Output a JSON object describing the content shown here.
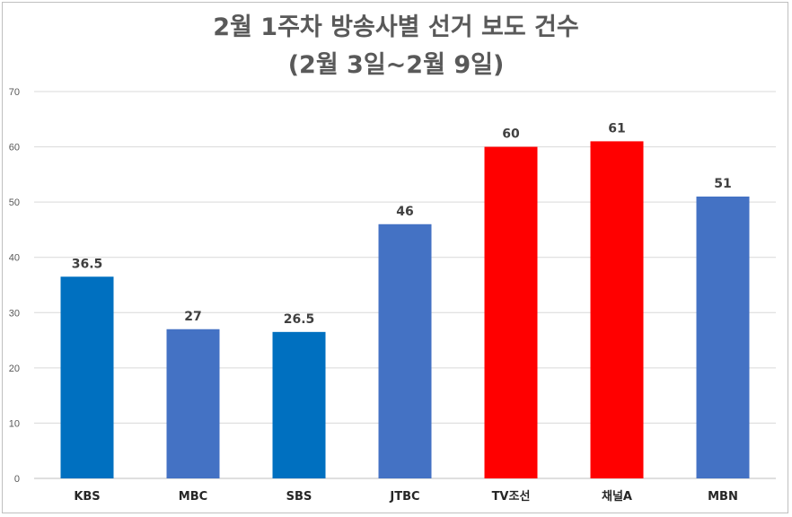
{
  "chart_data": {
    "type": "bar",
    "title": "2월 1주차 방송사별 선거 보도 건수",
    "subtitle": "(2월 3일~2월 9일)",
    "categories": [
      "KBS",
      "MBC",
      "SBS",
      "JTBC",
      "TV조선",
      "채널A",
      "MBN"
    ],
    "values": [
      36.5,
      27,
      26.5,
      46,
      60,
      61,
      51
    ],
    "data_labels": [
      "36.5",
      "27",
      "26.5",
      "46",
      "60",
      "61",
      "51"
    ],
    "colors": [
      "#0070c0",
      "#4472c4",
      "#0070c0",
      "#4472c4",
      "#ff0000",
      "#ff0000",
      "#4472c4"
    ],
    "ylim": [
      0,
      70
    ],
    "yticks": [
      0,
      10,
      20,
      30,
      40,
      50,
      60,
      70
    ],
    "grid": true,
    "xlabel": "",
    "ylabel": ""
  }
}
